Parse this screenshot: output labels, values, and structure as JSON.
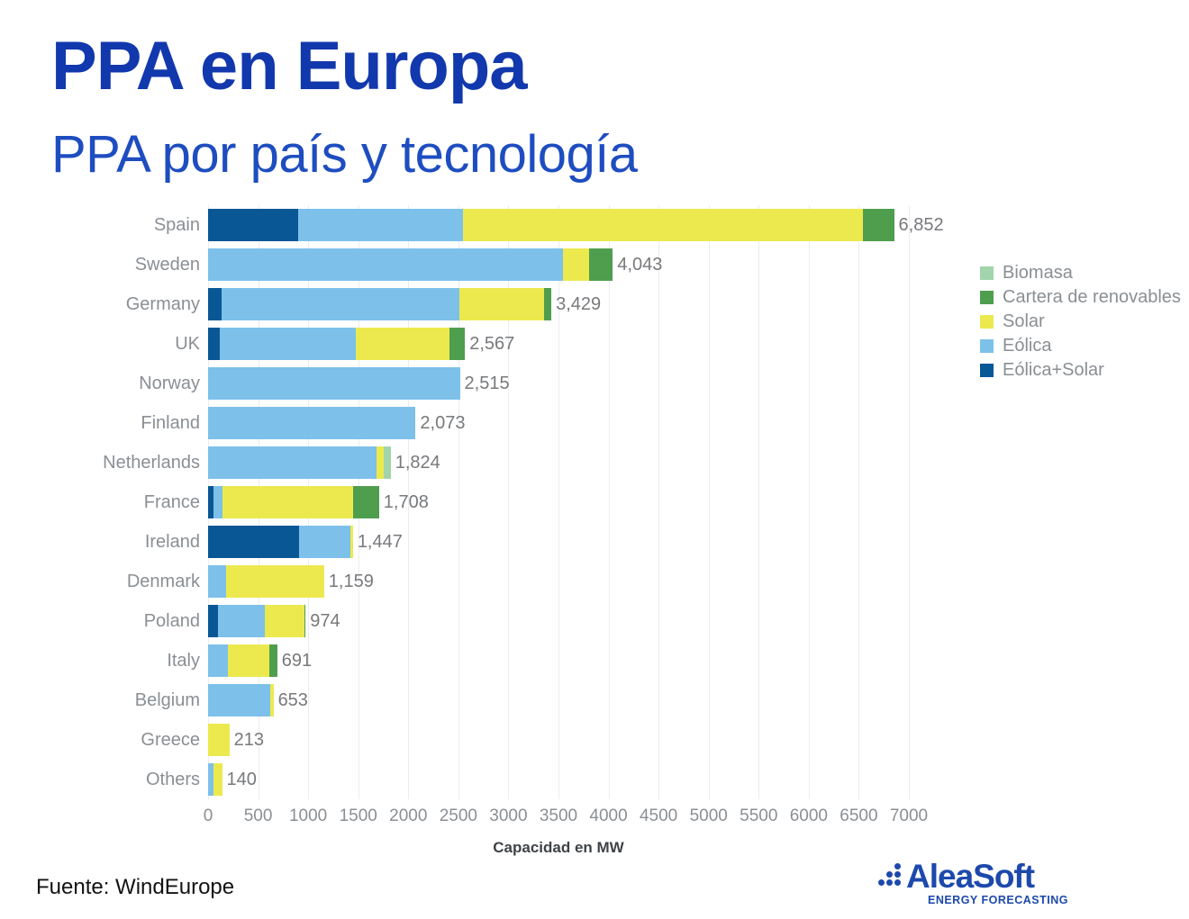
{
  "header": {
    "title": "PPA en Europa",
    "subtitle": "PPA por país y tecnología"
  },
  "legend": [
    {
      "key": "biomasa",
      "label": "Biomasa",
      "color": "#a2d4ab"
    },
    {
      "key": "cartera",
      "label": "Cartera de renovables",
      "color": "#4f9e4e"
    },
    {
      "key": "solar",
      "label": "Solar",
      "color": "#ece94f"
    },
    {
      "key": "eolica",
      "label": "Eólica",
      "color": "#7dc0ea"
    },
    {
      "key": "eolica_solar",
      "label": "Eólica+Solar",
      "color": "#0a5796"
    }
  ],
  "chart_data": {
    "type": "bar",
    "orientation": "horizontal",
    "stacked": true,
    "title": "PPA por país y tecnología",
    "xlabel": "Capacidad en MW",
    "ylabel": "",
    "xlim": [
      0,
      7000
    ],
    "x_ticks": [
      0,
      500,
      1000,
      1500,
      2000,
      2500,
      3000,
      3500,
      4000,
      4500,
      5000,
      5500,
      6000,
      6500,
      7000
    ],
    "grid": true,
    "legend_position": "right",
    "categories": [
      "Spain",
      "Sweden",
      "Germany",
      "UK",
      "Norway",
      "Finland",
      "Netherlands",
      "France",
      "Ireland",
      "Denmark",
      "Poland",
      "Italy",
      "Belgium",
      "Greece",
      "Others"
    ],
    "series": [
      {
        "name": "Eólica+Solar",
        "key": "eolica_solar",
        "color": "#0a5796",
        "values": [
          900,
          0,
          135,
          115,
          0,
          0,
          0,
          55,
          911,
          0,
          95,
          0,
          0,
          0,
          0
        ]
      },
      {
        "name": "Eólica",
        "key": "eolica",
        "color": "#7dc0ea",
        "values": [
          1650,
          3545,
          2375,
          1365,
          2515,
          2073,
          1680,
          90,
          509,
          180,
          475,
          200,
          620,
          0,
          50
        ]
      },
      {
        "name": "Solar",
        "key": "solar",
        "color": "#ece94f",
        "values": [
          3990,
          265,
          848,
          935,
          0,
          0,
          72,
          1305,
          27,
          979,
          394,
          411,
          33,
          213,
          90
        ]
      },
      {
        "name": "Cartera de renovables",
        "key": "cartera",
        "color": "#4f9e4e",
        "values": [
          312,
          233,
          71,
          152,
          0,
          0,
          0,
          258,
          0,
          0,
          10,
          80,
          0,
          0,
          0
        ]
      },
      {
        "name": "Biomasa",
        "key": "biomasa",
        "color": "#a2d4ab",
        "values": [
          0,
          0,
          0,
          0,
          0,
          0,
          72,
          0,
          0,
          0,
          0,
          0,
          0,
          0,
          0
        ]
      }
    ],
    "totals": [
      6852,
      4043,
      3429,
      2567,
      2515,
      2073,
      1824,
      1708,
      1447,
      1159,
      974,
      691,
      653,
      213,
      140
    ],
    "total_labels": [
      "6,852",
      "4,043",
      "3,429",
      "2,567",
      "2,515",
      "2,073",
      "1,824",
      "1,708",
      "1,447",
      "1,159",
      "974",
      "691",
      "653",
      "213",
      "140"
    ]
  },
  "footer": {
    "source": "Fuente: WindEurope",
    "logo": {
      "name": "AleaSoft",
      "tagline": "ENERGY FORECASTING"
    }
  }
}
